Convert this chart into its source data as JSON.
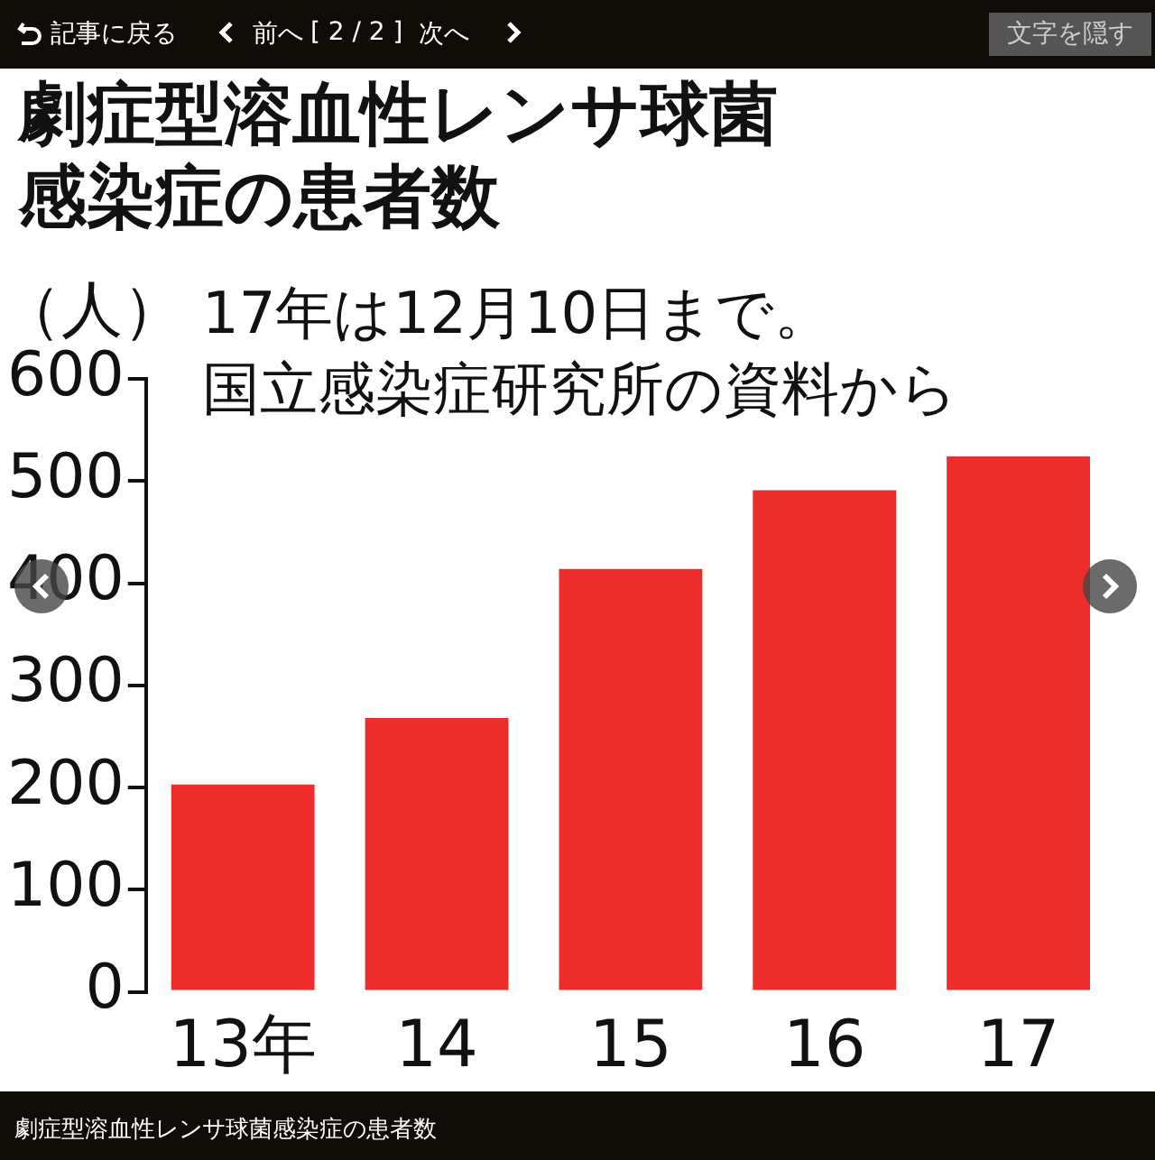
{
  "chart_data": {
    "type": "bar",
    "title": "劇症型溶血性レンサ球菌感染症の患者数",
    "ylabel": "（人）",
    "categories": [
      "13年",
      "14",
      "15",
      "16",
      "17"
    ],
    "values": [
      203,
      268,
      414,
      491,
      524
    ],
    "color": "#ec2d2b",
    "ylim": [
      0,
      600
    ],
    "yticks": [
      0,
      100,
      200,
      300,
      400,
      500,
      600
    ],
    "grid": false,
    "legend": false,
    "annotations": [
      "17年は12月10日まで。",
      "国立感染症研究所の資料から",
      "記事に戻る",
      "前へ",
      "[ 2 / 2 ]",
      "次へ",
      "文字を隠す",
      "劇症型溶血性レンサ球菌感染症の患者数"
    ]
  }
}
